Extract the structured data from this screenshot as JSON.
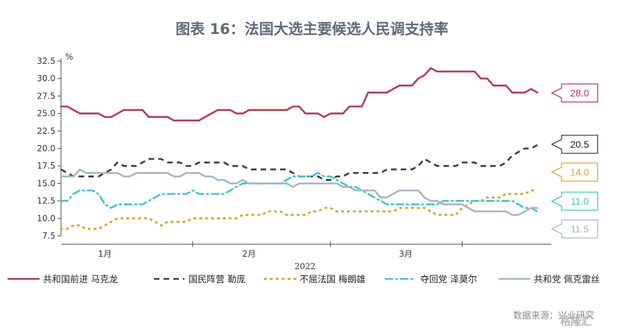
{
  "chart_data": {
    "type": "line",
    "title": "图表 16：法国大选主要候选人民调支持率",
    "unit_label": "%",
    "ylim": [
      7.5,
      32.5
    ],
    "yticks": [
      "7.5",
      "10.0",
      "12.5",
      "15.0",
      "17.5",
      "20.0",
      "22.5",
      "25.0",
      "27.5",
      "30.0",
      "32.5"
    ],
    "xlabel": "2022",
    "x_tick_labels": [
      "1月",
      "2月",
      "3月"
    ],
    "series": [
      {
        "name": "共和国前进 马克龙",
        "color": "#b5384e",
        "dash": "solid",
        "end_label": "28.0",
        "values": [
          26,
          26,
          25.5,
          25,
          25,
          25,
          25,
          24.5,
          24.5,
          25,
          25.5,
          25.5,
          25.5,
          25.5,
          24.5,
          24.5,
          24.5,
          24.5,
          24,
          24,
          24,
          24,
          24,
          24.5,
          25,
          25.5,
          25.5,
          25.5,
          25,
          25,
          25.5,
          25.5,
          25.5,
          25.5,
          25.5,
          25.5,
          25.5,
          26,
          26,
          25,
          25,
          25,
          24.5,
          25,
          25,
          25,
          26,
          26,
          26,
          28,
          28,
          28,
          28,
          28.5,
          29,
          29,
          29,
          30,
          30.5,
          31.5,
          31,
          31,
          31,
          31,
          31,
          31,
          31,
          30,
          30,
          29,
          29,
          29,
          28,
          28,
          28,
          28.5,
          28
        ]
      },
      {
        "name": "国民阵营 勒庞",
        "color": "#3a3a3a",
        "dash": "dashed",
        "end_label": "20.5",
        "values": [
          17,
          16.5,
          16,
          16,
          16,
          16,
          16,
          16.5,
          17,
          18,
          17.5,
          17.5,
          17.5,
          18,
          18.5,
          18.5,
          18.5,
          18,
          18,
          18,
          17.5,
          17.5,
          18,
          18,
          18,
          18,
          18,
          17.5,
          17.5,
          17.5,
          17,
          17,
          17,
          17,
          17,
          17,
          17,
          16.5,
          16,
          16,
          16,
          16,
          15.5,
          15.5,
          16,
          16,
          16.5,
          16.5,
          16.5,
          16.5,
          16.5,
          16.5,
          17,
          17,
          17,
          17,
          17,
          17.5,
          18.5,
          18,
          17.5,
          17.5,
          17.5,
          17.5,
          18,
          18,
          18,
          17.5,
          17.5,
          17.5,
          17.5,
          18,
          19,
          19.5,
          20,
          20,
          20.5
        ]
      },
      {
        "name": "不屈法国 梅朗雄",
        "color": "#d4a72c",
        "dash": "dotted",
        "end_label": "14.0",
        "values": [
          8.5,
          8.5,
          9,
          9,
          8.5,
          8.5,
          8.5,
          9,
          9.5,
          10,
          10,
          10,
          10,
          10,
          10,
          9.5,
          9,
          9.5,
          9.5,
          9.5,
          9.5,
          10,
          10,
          10,
          10,
          10,
          10,
          10,
          10,
          10.5,
          10.5,
          10.5,
          10.5,
          11,
          11,
          11,
          10.5,
          10.5,
          10.5,
          10.5,
          11,
          11,
          11.5,
          11.5,
          11,
          11,
          11,
          11,
          11,
          11,
          11,
          11,
          11,
          11,
          11.5,
          11.5,
          11.5,
          11.5,
          11.5,
          11,
          10.5,
          10.5,
          10.5,
          10.5,
          11.5,
          12,
          12.5,
          12.5,
          13,
          13,
          13,
          13.5,
          13.5,
          13.5,
          13.5,
          14,
          14
        ]
      },
      {
        "name": "夺回党 泽莫尔",
        "color": "#3fc4c8",
        "dash": "dashdot",
        "end_label": "11.0",
        "values": [
          12.5,
          12.5,
          13.5,
          14,
          14,
          14,
          13.5,
          12,
          11.5,
          12,
          12,
          12,
          12,
          12,
          12.5,
          13,
          13.5,
          13.5,
          13.5,
          13.5,
          13.5,
          14,
          13.5,
          13.5,
          13.5,
          13.5,
          13.5,
          14,
          14.5,
          15,
          15,
          15,
          15,
          15,
          15,
          15,
          15.5,
          16,
          16,
          16,
          16,
          16.5,
          16,
          16,
          15.5,
          15,
          14.5,
          14.5,
          14,
          13.5,
          13,
          12.5,
          12,
          12,
          12,
          12,
          12,
          12,
          12,
          12,
          12,
          12.5,
          12.5,
          12.5,
          12.5,
          12.5,
          12.5,
          12.5,
          12.5,
          12.5,
          12.5,
          12.5,
          12.5,
          12,
          11.5,
          11.5,
          11
        ]
      },
      {
        "name": "共和党 佩克雷丝",
        "color": "#a3b5c9",
        "dash": "solid",
        "end_label": "11.5",
        "values": [
          16,
          16,
          16,
          17,
          16.5,
          16.5,
          16.5,
          16.5,
          16.5,
          16.5,
          16,
          16,
          16.5,
          16.5,
          16.5,
          16.5,
          16.5,
          16.5,
          16,
          16,
          16.5,
          16.5,
          16.5,
          16,
          16,
          15.5,
          15.5,
          15,
          15,
          15.5,
          15,
          15,
          15,
          15,
          15,
          15,
          15,
          14.5,
          15,
          15,
          15,
          15,
          15,
          15,
          15,
          14.5,
          14.5,
          14,
          14,
          14,
          14,
          13,
          13,
          13.5,
          14,
          14,
          14,
          14,
          13,
          12.5,
          12.5,
          12,
          12,
          12,
          12,
          11.5,
          11,
          11,
          11,
          11,
          11,
          11,
          10.5,
          10.5,
          11,
          11.5,
          11.5
        ]
      }
    ]
  },
  "source_text": "数据来源：兴业研究",
  "watermark_text": "格隆汇"
}
